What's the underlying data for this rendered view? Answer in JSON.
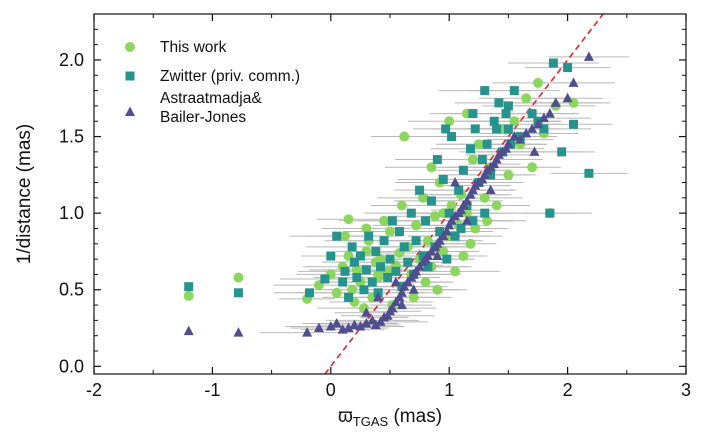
{
  "chart_data": {
    "type": "scatter",
    "xlabel_symbol": "ϖ",
    "xlabel_sub": "TGAS",
    "xlabel_unit": " (mas)",
    "ylabel": "1/distance (mas)",
    "xlim": [
      -2,
      3
    ],
    "ylim": [
      -0.05,
      2.3
    ],
    "xticks": [
      -2,
      -1,
      0,
      1,
      2,
      3
    ],
    "xtick_labels": [
      "-2",
      "-1",
      "0",
      "1",
      "2",
      "3"
    ],
    "yticks": [
      0.0,
      0.5,
      1.0,
      1.5,
      2.0
    ],
    "ytick_labels": [
      "0.0",
      "0.5",
      "1.0",
      "1.5",
      "2.0"
    ],
    "reference_line": {
      "style": "dashed",
      "color": "#e0262a",
      "description": "1:1 line",
      "slope": 1,
      "intercept": 0
    },
    "legend": {
      "position": "top-left",
      "entries": [
        "This work",
        "Zwitter (priv. comm.)",
        "Astraatmadja& Bailer-Jones"
      ]
    },
    "series": [
      {
        "name": "This work",
        "marker": "circle",
        "color": "#8cd65e",
        "points": [
          [
            -1.2,
            0.46
          ],
          [
            -0.78,
            0.58
          ],
          [
            -0.2,
            0.44
          ],
          [
            -0.1,
            0.53
          ],
          [
            0.0,
            0.6
          ],
          [
            0.05,
            0.48
          ],
          [
            0.1,
            0.65
          ],
          [
            0.12,
            0.85
          ],
          [
            0.15,
            0.72
          ],
          [
            0.15,
            0.96
          ],
          [
            0.18,
            0.5
          ],
          [
            0.2,
            0.42
          ],
          [
            0.22,
            0.63
          ],
          [
            0.25,
            0.55
          ],
          [
            0.28,
            0.38
          ],
          [
            0.3,
            0.75
          ],
          [
            0.32,
            0.82
          ],
          [
            0.35,
            0.45
          ],
          [
            0.38,
            0.68
          ],
          [
            0.4,
            0.58
          ],
          [
            0.42,
            0.7
          ],
          [
            0.45,
            0.95
          ],
          [
            0.48,
            0.62
          ],
          [
            0.5,
            0.88
          ],
          [
            0.52,
            0.4
          ],
          [
            0.55,
            0.66
          ],
          [
            0.58,
            0.74
          ],
          [
            0.6,
            0.52
          ],
          [
            0.62,
            1.5
          ],
          [
            0.65,
            0.78
          ],
          [
            0.68,
            0.6
          ],
          [
            0.7,
            0.45
          ],
          [
            0.72,
            0.92
          ],
          [
            0.75,
            0.7
          ],
          [
            0.78,
            1.1
          ],
          [
            0.8,
            0.55
          ],
          [
            0.82,
            0.82
          ],
          [
            0.85,
            0.65
          ],
          [
            0.88,
            0.98
          ],
          [
            0.9,
            0.5
          ],
          [
            0.92,
            1.2
          ],
          [
            0.95,
            0.75
          ],
          [
            1.0,
            1.6
          ],
          [
            1.0,
            0.85
          ],
          [
            1.02,
            1.05
          ],
          [
            1.05,
            0.62
          ],
          [
            1.08,
            0.92
          ],
          [
            1.1,
            1.12
          ],
          [
            1.12,
            0.72
          ],
          [
            1.15,
            1.0
          ],
          [
            1.18,
            0.8
          ],
          [
            1.2,
            1.35
          ],
          [
            1.22,
            0.9
          ],
          [
            1.25,
            1.45
          ],
          [
            1.3,
            1.1
          ],
          [
            1.32,
            0.95
          ],
          [
            1.35,
            1.3
          ],
          [
            1.4,
            1.05
          ],
          [
            1.45,
            1.55
          ],
          [
            1.5,
            1.25
          ],
          [
            1.55,
            1.6
          ],
          [
            1.6,
            1.45
          ],
          [
            1.65,
            1.75
          ],
          [
            1.7,
            1.3
          ],
          [
            1.75,
            1.85
          ],
          [
            1.8,
            1.52
          ],
          [
            1.85,
            1.0
          ],
          [
            1.9,
            1.7
          ],
          [
            2.05,
            1.72
          ],
          [
            0.3,
            0.9
          ],
          [
            0.6,
            1.05
          ],
          [
            0.85,
            1.3
          ],
          [
            1.15,
            1.65
          ],
          [
            0.4,
            0.6
          ],
          [
            0.95,
            1.0
          ]
        ]
      },
      {
        "name": "Zwitter (priv. comm.)",
        "marker": "square",
        "color": "#26938f",
        "points": [
          [
            -1.2,
            0.52
          ],
          [
            -0.78,
            0.48
          ],
          [
            -0.18,
            0.48
          ],
          [
            -0.05,
            0.57
          ],
          [
            0.0,
            0.72
          ],
          [
            0.05,
            0.85
          ],
          [
            0.1,
            0.55
          ],
          [
            0.12,
            0.62
          ],
          [
            0.15,
            0.45
          ],
          [
            0.18,
            0.78
          ],
          [
            0.2,
            0.68
          ],
          [
            0.22,
            0.58
          ],
          [
            0.25,
            0.72
          ],
          [
            0.28,
            0.5
          ],
          [
            0.3,
            0.63
          ],
          [
            0.32,
            0.85
          ],
          [
            0.35,
            0.55
          ],
          [
            0.38,
            0.75
          ],
          [
            0.4,
            0.48
          ],
          [
            0.42,
            0.65
          ],
          [
            0.45,
            0.82
          ],
          [
            0.48,
            0.58
          ],
          [
            0.5,
            0.7
          ],
          [
            0.52,
            0.95
          ],
          [
            0.55,
            0.62
          ],
          [
            0.58,
            0.88
          ],
          [
            0.6,
            0.52
          ],
          [
            0.62,
            0.78
          ],
          [
            0.65,
            0.68
          ],
          [
            0.68,
            1.0
          ],
          [
            0.7,
            0.6
          ],
          [
            0.72,
            0.82
          ],
          [
            0.75,
            1.15
          ],
          [
            0.78,
            0.72
          ],
          [
            0.8,
            0.95
          ],
          [
            0.82,
            0.65
          ],
          [
            0.85,
            1.08
          ],
          [
            0.88,
            0.78
          ],
          [
            0.9,
            1.35
          ],
          [
            0.92,
            0.88
          ],
          [
            0.95,
            1.22
          ],
          [
            0.98,
            0.7
          ],
          [
            1.0,
            1.0
          ],
          [
            1.02,
            1.5
          ],
          [
            1.05,
            0.85
          ],
          [
            1.08,
            1.15
          ],
          [
            1.1,
            0.9
          ],
          [
            1.12,
            1.28
          ],
          [
            1.15,
            1.05
          ],
          [
            1.18,
            1.42
          ],
          [
            1.2,
            0.95
          ],
          [
            1.22,
            1.55
          ],
          [
            1.25,
            1.2
          ],
          [
            1.28,
            1.35
          ],
          [
            1.3,
            1.0
          ],
          [
            1.32,
            1.45
          ],
          [
            1.35,
            1.25
          ],
          [
            1.38,
            1.6
          ],
          [
            1.4,
            1.55
          ],
          [
            1.42,
            1.72
          ],
          [
            1.45,
            1.4
          ],
          [
            1.48,
            1.65
          ],
          [
            1.5,
            1.55
          ],
          [
            1.52,
            1.45
          ],
          [
            1.55,
            1.8
          ],
          [
            1.6,
            1.5
          ],
          [
            1.7,
            1.65
          ],
          [
            1.75,
            1.6
          ],
          [
            1.8,
            1.55
          ],
          [
            1.85,
            1.0
          ],
          [
            1.88,
            1.98
          ],
          [
            1.95,
            1.4
          ],
          [
            2.0,
            1.95
          ],
          [
            2.05,
            1.58
          ],
          [
            2.18,
            1.26
          ],
          [
            1.2,
            1.65
          ],
          [
            0.97,
            1.55
          ],
          [
            1.3,
            1.8
          ],
          [
            1.5,
            1.7
          ]
        ]
      },
      {
        "name": "Astraatmadja& Bailer-Jones",
        "marker": "triangle",
        "color": "#4f4e8e",
        "points": [
          [
            -1.2,
            0.23
          ],
          [
            -0.78,
            0.22
          ],
          [
            -0.2,
            0.22
          ],
          [
            -0.1,
            0.25
          ],
          [
            0.0,
            0.26
          ],
          [
            0.05,
            0.28
          ],
          [
            0.1,
            0.24
          ],
          [
            0.15,
            0.25
          ],
          [
            0.2,
            0.27
          ],
          [
            0.25,
            0.26
          ],
          [
            0.3,
            0.28
          ],
          [
            0.35,
            0.3
          ],
          [
            0.38,
            0.27
          ],
          [
            0.42,
            0.29
          ],
          [
            0.45,
            0.32
          ],
          [
            0.48,
            0.33
          ],
          [
            0.5,
            0.36
          ],
          [
            0.52,
            0.38
          ],
          [
            0.55,
            0.42
          ],
          [
            0.58,
            0.45
          ],
          [
            0.6,
            0.48
          ],
          [
            0.62,
            0.52
          ],
          [
            0.65,
            0.55
          ],
          [
            0.68,
            0.58
          ],
          [
            0.7,
            0.6
          ],
          [
            0.72,
            0.62
          ],
          [
            0.75,
            0.65
          ],
          [
            0.78,
            0.68
          ],
          [
            0.8,
            0.7
          ],
          [
            0.82,
            0.72
          ],
          [
            0.85,
            0.75
          ],
          [
            0.88,
            0.78
          ],
          [
            0.9,
            0.8
          ],
          [
            0.92,
            0.82
          ],
          [
            0.95,
            0.85
          ],
          [
            0.98,
            0.88
          ],
          [
            1.0,
            0.92
          ],
          [
            1.02,
            0.95
          ],
          [
            1.05,
            0.98
          ],
          [
            1.08,
            1.0
          ],
          [
            1.1,
            1.02
          ],
          [
            1.12,
            1.05
          ],
          [
            1.15,
            1.08
          ],
          [
            1.18,
            1.12
          ],
          [
            1.2,
            1.15
          ],
          [
            1.22,
            1.18
          ],
          [
            1.25,
            1.2
          ],
          [
            1.28,
            1.22
          ],
          [
            1.3,
            1.25
          ],
          [
            1.32,
            1.28
          ],
          [
            1.35,
            1.3
          ],
          [
            1.38,
            1.32
          ],
          [
            1.4,
            1.35
          ],
          [
            1.42,
            1.38
          ],
          [
            1.45,
            1.4
          ],
          [
            1.48,
            1.42
          ],
          [
            1.5,
            1.45
          ],
          [
            1.55,
            1.5
          ],
          [
            1.6,
            1.48
          ],
          [
            1.65,
            1.52
          ],
          [
            1.7,
            1.55
          ],
          [
            1.72,
            1.4
          ],
          [
            1.75,
            1.58
          ],
          [
            1.8,
            1.62
          ],
          [
            1.85,
            1.65
          ],
          [
            1.9,
            1.72
          ],
          [
            2.0,
            1.75
          ],
          [
            2.05,
            1.85
          ],
          [
            2.18,
            2.02
          ],
          [
            1.05,
            1.2
          ],
          [
            0.4,
            0.45
          ],
          [
            0.6,
            0.4
          ],
          [
            0.7,
            0.5
          ],
          [
            0.9,
            0.72
          ],
          [
            1.15,
            0.95
          ],
          [
            1.35,
            1.15
          ],
          [
            0.55,
            0.55
          ],
          [
            0.3,
            0.35
          ]
        ]
      }
    ]
  }
}
